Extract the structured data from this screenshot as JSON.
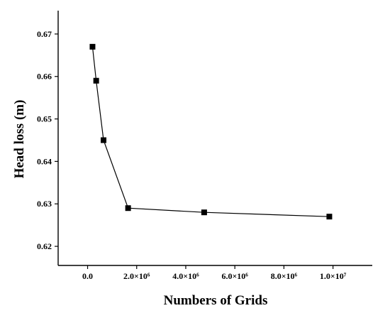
{
  "chart_data": {
    "type": "line",
    "xlabel": "Numbers of Grids",
    "ylabel": "Head loss (m)",
    "xlim": [
      -1200000,
      11600000
    ],
    "ylim": [
      0.6155,
      0.6755
    ],
    "x_ticks": [
      0,
      2000000,
      4000000,
      6000000,
      8000000,
      10000000
    ],
    "x_tick_labels": [
      "0.0",
      "2.0×10⁶",
      "4.0×10⁶",
      "6.0×10⁶",
      "8.0×10⁶",
      "1.0×10⁷"
    ],
    "y_ticks": [
      0.62,
      0.63,
      0.64,
      0.65,
      0.66,
      0.67
    ],
    "y_tick_labels": [
      "0.62",
      "0.63",
      "0.64",
      "0.65",
      "0.66",
      "0.67"
    ],
    "grid": false,
    "legend": "none",
    "marker": "square",
    "color": "#000000",
    "series": [
      {
        "x": [
          200000,
          350000,
          650000,
          1650000,
          4750000,
          9850000
        ],
        "y": [
          0.667,
          0.659,
          0.645,
          0.629,
          0.628,
          0.627
        ]
      }
    ]
  }
}
